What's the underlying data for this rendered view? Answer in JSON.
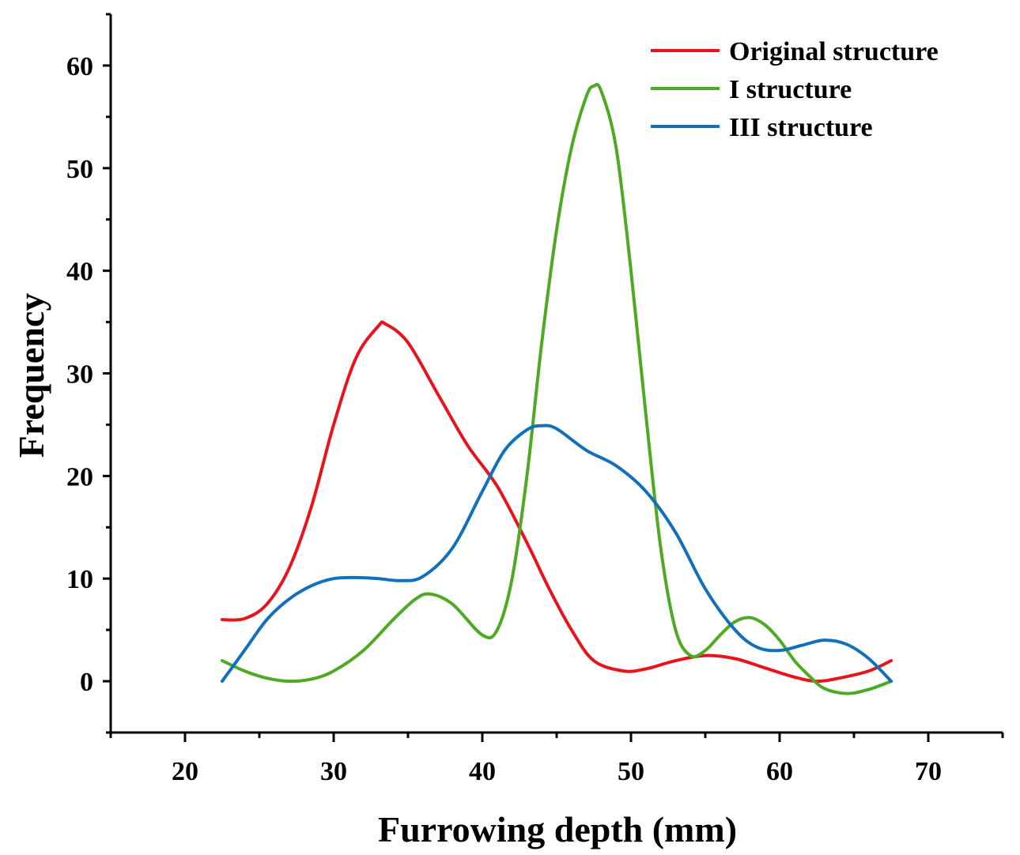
{
  "chart_data": {
    "type": "line",
    "title": "",
    "xlabel": "Furrowing depth (mm)",
    "ylabel": "Frequency",
    "xlim": [
      15,
      75
    ],
    "ylim": [
      -5,
      65
    ],
    "xticks": [
      20,
      30,
      40,
      50,
      60,
      70
    ],
    "yticks": [
      0,
      10,
      20,
      30,
      40,
      50,
      60
    ],
    "grid": false,
    "legend": "top-right",
    "series": [
      {
        "name": "Original structure",
        "color": "#e8141b",
        "x": [
          22.5,
          24,
          25.5,
          27,
          28.5,
          30,
          31.5,
          33,
          33.5,
          35,
          37,
          39,
          41,
          43,
          44.5,
          46,
          47.5,
          49.5,
          51,
          53,
          55,
          57,
          59,
          61,
          62.5,
          64,
          66,
          67.5
        ],
        "y": [
          6,
          6.1,
          7.5,
          11,
          17,
          25,
          31.5,
          34.6,
          34.8,
          33,
          28,
          23,
          19,
          13.5,
          9,
          5,
          2,
          1,
          1.2,
          2,
          2.5,
          2.2,
          1.3,
          0.4,
          0,
          0.3,
          1,
          2
        ]
      },
      {
        "name": "I structure",
        "color": "#4daa22",
        "x": [
          22.5,
          24,
          25.5,
          27,
          28.5,
          30,
          32,
          34,
          35.5,
          36.5,
          38,
          40,
          41,
          42,
          43,
          44,
          45,
          46,
          47,
          47.5,
          48,
          49,
          50,
          51,
          52,
          53,
          54,
          55,
          56,
          57,
          58,
          59,
          60,
          61,
          62,
          63,
          64.5,
          66,
          67.5
        ],
        "y": [
          2,
          1,
          0.3,
          0,
          0.2,
          1,
          3,
          6,
          8,
          8.5,
          7.5,
          4.5,
          5,
          10,
          20,
          33,
          44,
          52,
          57,
          58,
          57.5,
          52,
          40,
          26,
          13,
          5,
          2.5,
          3,
          4.5,
          5.8,
          6.2,
          5.5,
          4,
          2,
          0.5,
          -0.7,
          -1.2,
          -0.8,
          0
        ]
      },
      {
        "name": "III structure",
        "color": "#1070bc",
        "x": [
          22.5,
          24,
          25.5,
          27,
          28.5,
          30,
          31.5,
          33,
          34.5,
          36,
          38,
          40,
          41.5,
          43,
          44,
          45,
          47,
          49,
          51,
          53,
          55,
          57,
          58.5,
          60,
          61.5,
          63,
          64.5,
          66,
          67.5
        ],
        "y": [
          0,
          3,
          6,
          8,
          9.3,
          10,
          10.1,
          10,
          9.8,
          10.2,
          13,
          18.5,
          22.5,
          24.5,
          24.9,
          24.6,
          22.5,
          21,
          18.5,
          14.5,
          9,
          5,
          3.3,
          3,
          3.5,
          4,
          3.6,
          2.2,
          0
        ]
      }
    ]
  }
}
